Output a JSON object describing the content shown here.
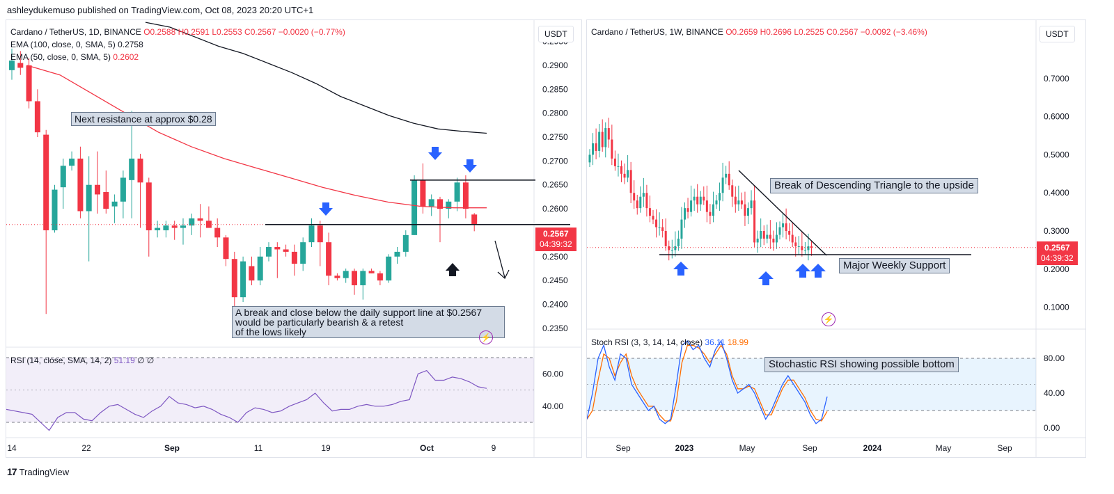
{
  "header": {
    "text": "ashleydukemuso published on TradingView.com, Oct 08, 2023 20:20 UTC+1"
  },
  "left": {
    "symbol": "Cardano / TetherUS, 1D, BINANCE",
    "ohlc": {
      "o": "O0.2588",
      "h": "H0.2591",
      "l": "L0.2553",
      "c": "C0.2567",
      "chg": "−0.0020 (−0.77%)"
    },
    "ema100_label": "EMA (100, close, 0, SMA, 5)",
    "ema100_val": "0.2758",
    "ema50_label": "EMA (50, close, 0, SMA, 5)",
    "ema50_val": "0.2602",
    "currency": "USDT",
    "price_tag": "0.2567",
    "countdown": "04:39:32",
    "notes": {
      "resistance": "Next resistance at approx $0.28",
      "support_line1": "A break and close below the daily support line at $0.2567",
      "support_line2": "would be particularly bearish & a retest",
      "support_line3": "of the lows likely"
    },
    "rsi_label": "RSI (14, close, SMA, 14, 2)",
    "rsi_val": "51.19",
    "rsi_extra": "∅ ∅"
  },
  "right": {
    "symbol": "Cardano / TetherUS, 1W, BINANCE",
    "ohlc": {
      "o": "O0.2659",
      "h": "H0.2696",
      "l": "L0.2525",
      "c": "C0.2567",
      "chg": "−0.0092 (−3.46%)"
    },
    "currency": "USDT",
    "price_tag": "0.2567",
    "countdown": "04:39:32",
    "notes": {
      "triangle": "Break of Descending Triangle to the upside",
      "support": "Major Weekly Support",
      "stoch": "Stochastic RSI showing possible bottom"
    },
    "stoch_label": "Stoch RSI (3, 3, 14, 14, close)",
    "stoch_k": "36.11",
    "stoch_d": "18.99"
  },
  "footer": {
    "brand": "TradingView"
  },
  "colors": {
    "up": "#26a69a",
    "down": "#f23645",
    "ema100": "#131722",
    "ema50": "#f23645",
    "rsi": "#7e57c2",
    "stoch_k": "#2962ff",
    "stoch_d": "#ff6d00",
    "arrow_blue": "#2962ff",
    "note_bg": "#d3dbe6"
  },
  "chart_data": [
    {
      "type": "candlestick",
      "title": "Cardano / TetherUS, 1D, BINANCE",
      "x_tick_labels": [
        "14",
        "22",
        "Sep",
        "11",
        "19",
        "Oct",
        "9"
      ],
      "y_tick_labels": [
        "0.2950",
        "0.2900",
        "0.2850",
        "0.2800",
        "0.2750",
        "0.2700",
        "0.2650",
        "0.2600",
        "0.2550",
        "0.2500",
        "0.2450",
        "0.2400",
        "0.2350"
      ],
      "ylim": [
        0.2325,
        0.298
      ],
      "candles": [
        {
          "o": 0.289,
          "h": 0.2935,
          "l": 0.287,
          "c": 0.291
        },
        {
          "o": 0.2905,
          "h": 0.293,
          "l": 0.288,
          "c": 0.2895
        },
        {
          "o": 0.29,
          "h": 0.2915,
          "l": 0.281,
          "c": 0.2825
        },
        {
          "o": 0.2825,
          "h": 0.285,
          "l": 0.275,
          "c": 0.276
        },
        {
          "o": 0.2755,
          "h": 0.2765,
          "l": 0.238,
          "c": 0.2555
        },
        {
          "o": 0.2555,
          "h": 0.265,
          "l": 0.255,
          "c": 0.264
        },
        {
          "o": 0.2645,
          "h": 0.2705,
          "l": 0.26,
          "c": 0.269
        },
        {
          "o": 0.269,
          "h": 0.272,
          "l": 0.268,
          "c": 0.2705
        },
        {
          "o": 0.2705,
          "h": 0.273,
          "l": 0.258,
          "c": 0.2595
        },
        {
          "o": 0.2595,
          "h": 0.271,
          "l": 0.249,
          "c": 0.265
        },
        {
          "o": 0.265,
          "h": 0.272,
          "l": 0.259,
          "c": 0.263
        },
        {
          "o": 0.2635,
          "h": 0.268,
          "l": 0.259,
          "c": 0.26
        },
        {
          "o": 0.2605,
          "h": 0.263,
          "l": 0.257,
          "c": 0.2615
        },
        {
          "o": 0.2615,
          "h": 0.268,
          "l": 0.258,
          "c": 0.2665
        },
        {
          "o": 0.266,
          "h": 0.2805,
          "l": 0.258,
          "c": 0.2705
        },
        {
          "o": 0.2705,
          "h": 0.2715,
          "l": 0.256,
          "c": 0.2655
        },
        {
          "o": 0.2655,
          "h": 0.2665,
          "l": 0.25,
          "c": 0.2555
        },
        {
          "o": 0.2555,
          "h": 0.2575,
          "l": 0.254,
          "c": 0.256
        },
        {
          "o": 0.2555,
          "h": 0.2575,
          "l": 0.254,
          "c": 0.2565
        },
        {
          "o": 0.2565,
          "h": 0.2575,
          "l": 0.2535,
          "c": 0.256
        },
        {
          "o": 0.256,
          "h": 0.258,
          "l": 0.2525,
          "c": 0.2565
        },
        {
          "o": 0.2565,
          "h": 0.259,
          "l": 0.2545,
          "c": 0.258
        },
        {
          "o": 0.258,
          "h": 0.261,
          "l": 0.254,
          "c": 0.2575
        },
        {
          "o": 0.2575,
          "h": 0.2605,
          "l": 0.256,
          "c": 0.256
        },
        {
          "o": 0.256,
          "h": 0.258,
          "l": 0.252,
          "c": 0.254
        },
        {
          "o": 0.254,
          "h": 0.2545,
          "l": 0.248,
          "c": 0.2495
        },
        {
          "o": 0.2495,
          "h": 0.251,
          "l": 0.239,
          "c": 0.2415
        },
        {
          "o": 0.2415,
          "h": 0.25,
          "l": 0.2405,
          "c": 0.249
        },
        {
          "o": 0.248,
          "h": 0.25,
          "l": 0.244,
          "c": 0.245
        },
        {
          "o": 0.245,
          "h": 0.252,
          "l": 0.244,
          "c": 0.25
        },
        {
          "o": 0.25,
          "h": 0.253,
          "l": 0.249,
          "c": 0.252
        },
        {
          "o": 0.252,
          "h": 0.253,
          "l": 0.2455,
          "c": 0.2515
        },
        {
          "o": 0.2515,
          "h": 0.2525,
          "l": 0.25,
          "c": 0.251
        },
        {
          "o": 0.251,
          "h": 0.2525,
          "l": 0.246,
          "c": 0.2485
        },
        {
          "o": 0.2485,
          "h": 0.254,
          "l": 0.247,
          "c": 0.253
        },
        {
          "o": 0.253,
          "h": 0.258,
          "l": 0.252,
          "c": 0.2565
        },
        {
          "o": 0.2565,
          "h": 0.2575,
          "l": 0.248,
          "c": 0.253
        },
        {
          "o": 0.253,
          "h": 0.255,
          "l": 0.244,
          "c": 0.246
        },
        {
          "o": 0.246,
          "h": 0.2465,
          "l": 0.245,
          "c": 0.2455
        },
        {
          "o": 0.2455,
          "h": 0.2475,
          "l": 0.2445,
          "c": 0.247
        },
        {
          "o": 0.247,
          "h": 0.2475,
          "l": 0.242,
          "c": 0.244
        },
        {
          "o": 0.244,
          "h": 0.2475,
          "l": 0.241,
          "c": 0.247
        },
        {
          "o": 0.247,
          "h": 0.2475,
          "l": 0.2465,
          "c": 0.2465
        },
        {
          "o": 0.2465,
          "h": 0.247,
          "l": 0.244,
          "c": 0.245
        },
        {
          "o": 0.245,
          "h": 0.2505,
          "l": 0.2445,
          "c": 0.25
        },
        {
          "o": 0.25,
          "h": 0.252,
          "l": 0.2485,
          "c": 0.251
        },
        {
          "o": 0.251,
          "h": 0.2555,
          "l": 0.25,
          "c": 0.2545
        },
        {
          "o": 0.2545,
          "h": 0.267,
          "l": 0.2545,
          "c": 0.266
        },
        {
          "o": 0.266,
          "h": 0.2695,
          "l": 0.259,
          "c": 0.2605
        },
        {
          "o": 0.2605,
          "h": 0.263,
          "l": 0.2585,
          "c": 0.262
        },
        {
          "o": 0.262,
          "h": 0.2625,
          "l": 0.253,
          "c": 0.26
        },
        {
          "o": 0.26,
          "h": 0.262,
          "l": 0.258,
          "c": 0.2615
        },
        {
          "o": 0.2615,
          "h": 0.2665,
          "l": 0.2595,
          "c": 0.2655
        },
        {
          "o": 0.2655,
          "h": 0.267,
          "l": 0.258,
          "c": 0.26
        },
        {
          "o": 0.2588,
          "h": 0.2591,
          "l": 0.2553,
          "c": 0.2567
        }
      ],
      "ema100": [
        0.299,
        0.298,
        0.296,
        0.294,
        0.2925,
        0.2905,
        0.2885,
        0.2862,
        0.2835,
        0.2815,
        0.2795,
        0.2779,
        0.2767,
        0.2762,
        0.2758
      ],
      "ema50": [
        0.29,
        0.288,
        0.284,
        0.28,
        0.276,
        0.273,
        0.2705,
        0.2685,
        0.2665,
        0.2645,
        0.2628,
        0.2614,
        0.2605,
        0.2602,
        0.2602
      ],
      "support": 0.2567,
      "resistance": 0.266,
      "rsi_ylabels": [
        "60.00",
        "40.00"
      ],
      "rsi": [
        38,
        37,
        36,
        35,
        30,
        25,
        33,
        36,
        36,
        32,
        31,
        36,
        40,
        41,
        38,
        35,
        33,
        37,
        40,
        46,
        42,
        41,
        39,
        40,
        38,
        35,
        33,
        30,
        36,
        39,
        38,
        36,
        37,
        40,
        42,
        44,
        48,
        42,
        37,
        38,
        38,
        40,
        41,
        40,
        40,
        41,
        43,
        44,
        60,
        62,
        56,
        56,
        58,
        57,
        55,
        52,
        51
      ]
    },
    {
      "type": "candlestick",
      "title": "Cardano / TetherUS, 1W, BINANCE",
      "x_tick_labels": [
        "Sep",
        "2023",
        "May",
        "Sep",
        "2024",
        "May",
        "Sep"
      ],
      "y_tick_labels": [
        "0.7000",
        "0.6000",
        "0.5000",
        "0.4000",
        "0.3000",
        "0.2000",
        "0.1000"
      ],
      "ylim": [
        0.05,
        0.78
      ],
      "close_series": [
        0.5,
        0.53,
        0.51,
        0.56,
        0.52,
        0.57,
        0.54,
        0.49,
        0.47,
        0.47,
        0.45,
        0.44,
        0.46,
        0.4,
        0.38,
        0.36,
        0.39,
        0.4,
        0.36,
        0.34,
        0.33,
        0.31,
        0.31,
        0.3,
        0.26,
        0.25,
        0.25,
        0.26,
        0.28,
        0.33,
        0.36,
        0.35,
        0.38,
        0.39,
        0.37,
        0.39,
        0.38,
        0.35,
        0.34,
        0.37,
        0.38,
        0.4,
        0.44,
        0.45,
        0.42,
        0.39,
        0.37,
        0.38,
        0.37,
        0.34,
        0.36,
        0.38,
        0.27,
        0.28,
        0.3,
        0.28,
        0.29,
        0.28,
        0.27,
        0.29,
        0.31,
        0.32,
        0.3,
        0.29,
        0.27,
        0.26,
        0.26,
        0.25,
        0.25,
        0.26,
        0.2567
      ],
      "triangle_upper": [
        [
          0.45,
          0.455
        ],
        [
          0.25,
          0.255
        ]
      ],
      "major_support": 0.24,
      "stoch_ylabels": [
        "80.00",
        "40.00",
        "0.00"
      ],
      "stoch_k": [
        10,
        40,
        80,
        95,
        70,
        55,
        85,
        80,
        50,
        40,
        30,
        20,
        25,
        10,
        5,
        10,
        50,
        95,
        100,
        90,
        95,
        80,
        70,
        90,
        100,
        80,
        55,
        40,
        45,
        50,
        40,
        25,
        10,
        20,
        35,
        50,
        60,
        50,
        40,
        30,
        15,
        5,
        10,
        36
      ],
      "stoch_d": [
        10,
        20,
        55,
        85,
        80,
        60,
        75,
        85,
        60,
        45,
        35,
        25,
        25,
        15,
        8,
        8,
        30,
        75,
        95,
        95,
        92,
        85,
        75,
        85,
        95,
        85,
        60,
        45,
        45,
        48,
        45,
        30,
        15,
        15,
        30,
        45,
        55,
        55,
        45,
        35,
        20,
        10,
        8,
        19
      ]
    }
  ]
}
